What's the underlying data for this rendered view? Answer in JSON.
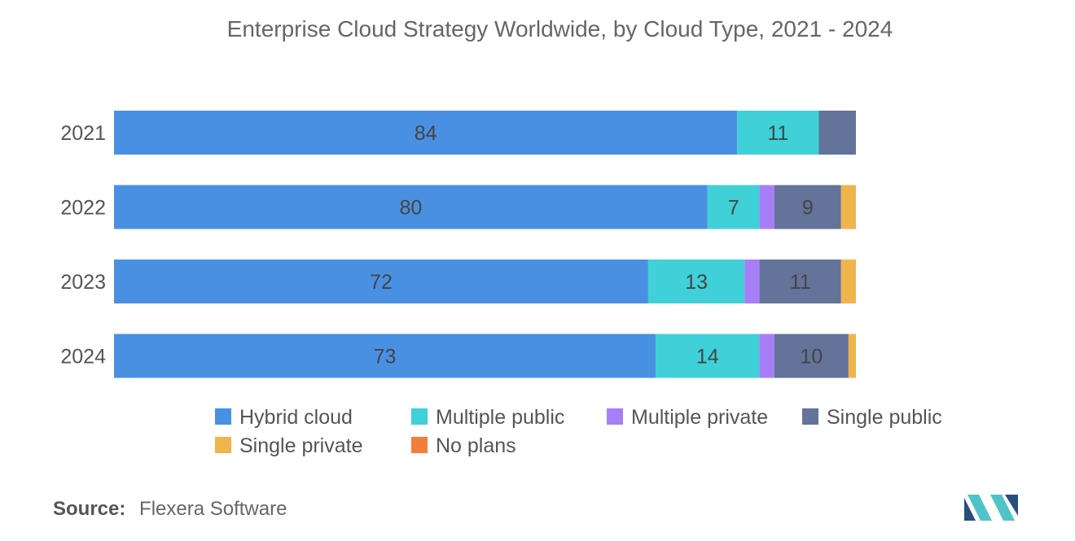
{
  "chart_data": {
    "type": "bar",
    "orientation": "horizontal",
    "stacked": true,
    "title": "Enterprise Cloud Strategy Worldwide, by Cloud Type, 2021 - 2024",
    "categories": [
      "2021",
      "2022",
      "2023",
      "2024"
    ],
    "series": [
      {
        "name": "Hybrid cloud",
        "color": "#4a90e2",
        "values": [
          84,
          80,
          72,
          73
        ],
        "labels": [
          "84",
          "80",
          "72",
          "73"
        ]
      },
      {
        "name": "Multiple public",
        "color": "#40d0d8",
        "values": [
          11,
          7,
          13,
          14
        ],
        "labels": [
          "11",
          "7",
          "13",
          "14"
        ]
      },
      {
        "name": "Multiple private",
        "color": "#a67ff7",
        "values": [
          0,
          2,
          2,
          2
        ],
        "labels": [
          "",
          "",
          "",
          ""
        ]
      },
      {
        "name": "Single public",
        "color": "#63739a",
        "values": [
          5,
          9,
          11,
          10
        ],
        "labels": [
          "",
          "9",
          "11",
          "10"
        ]
      },
      {
        "name": "Single private",
        "color": "#f0b44c",
        "values": [
          0,
          2,
          2,
          1
        ],
        "labels": [
          "",
          "",
          "",
          ""
        ]
      },
      {
        "name": "No plans",
        "color": "#f47c3c",
        "values": [
          0,
          0,
          0,
          0
        ],
        "labels": [
          "",
          "",
          "",
          ""
        ]
      }
    ],
    "xlim": [
      0,
      100
    ],
    "grid": false,
    "legend_position": "bottom"
  },
  "source": {
    "label": "Source:",
    "text": "Flexera Software"
  },
  "logo": {
    "colors": [
      "#2a4d7f",
      "#4fc3c8"
    ]
  }
}
